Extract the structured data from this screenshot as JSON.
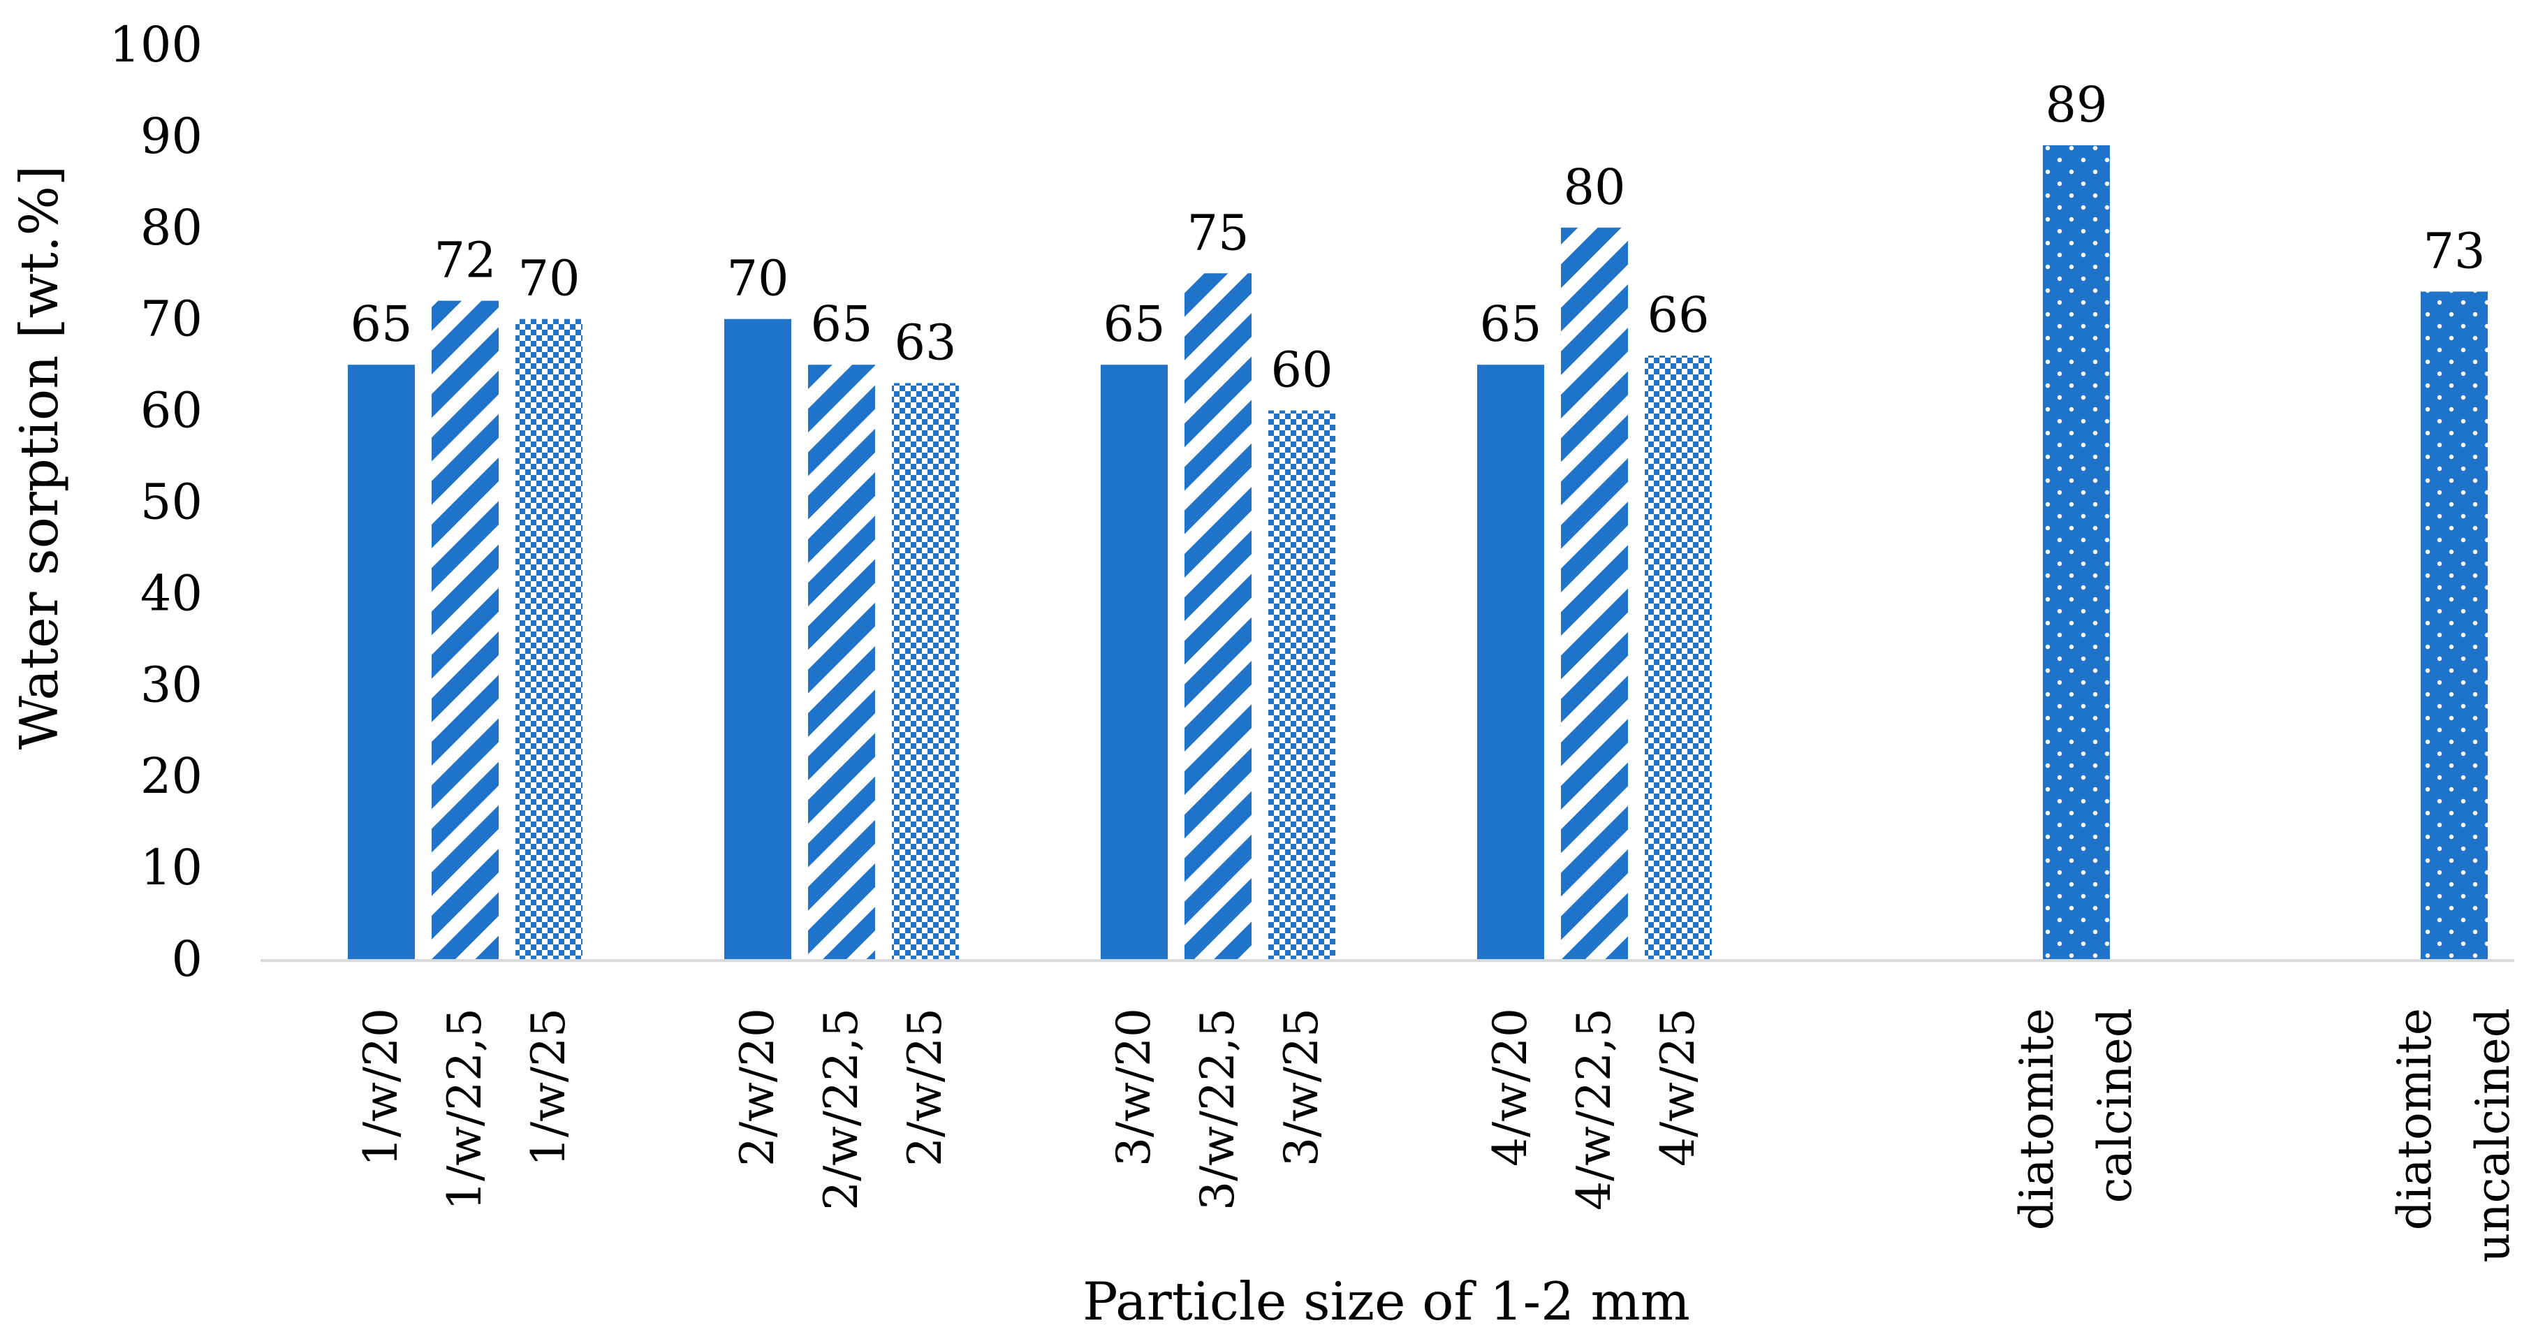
{
  "chart_data": {
    "type": "bar",
    "xlabel": "Particle size of 1-2 mm",
    "ylabel": "Water sorption [wt.%]",
    "ylim": [
      0,
      100
    ],
    "yticks": [
      0,
      10,
      20,
      30,
      40,
      50,
      60,
      70,
      80,
      90,
      100
    ],
    "grid": false,
    "legend": "none",
    "bar_color": "#1f73c9",
    "patterns": [
      "solid",
      "diagonal-stripes",
      "checker",
      "dots"
    ],
    "groups": [
      {
        "bars": [
          {
            "label": "1/w/20",
            "value": 65,
            "pattern": "solid"
          },
          {
            "label": "1/w/22,5",
            "value": 72,
            "pattern": "diagonal-stripes"
          },
          {
            "label": "1/w/25",
            "value": 70,
            "pattern": "checker"
          }
        ]
      },
      {
        "bars": [
          {
            "label": "2/w/20",
            "value": 70,
            "pattern": "solid"
          },
          {
            "label": "2/w/22,5",
            "value": 65,
            "pattern": "diagonal-stripes"
          },
          {
            "label": "2/w/25",
            "value": 63,
            "pattern": "checker"
          }
        ]
      },
      {
        "bars": [
          {
            "label": "3/w/20",
            "value": 65,
            "pattern": "solid"
          },
          {
            "label": "3/w/22,5",
            "value": 75,
            "pattern": "diagonal-stripes"
          },
          {
            "label": "3/w/25",
            "value": 60,
            "pattern": "checker"
          }
        ]
      },
      {
        "bars": [
          {
            "label": "4/w/20",
            "value": 65,
            "pattern": "solid"
          },
          {
            "label": "4/w/22,5",
            "value": 80,
            "pattern": "diagonal-stripes"
          },
          {
            "label": "4/w/25",
            "value": 66,
            "pattern": "checker"
          }
        ]
      },
      {
        "bars": [
          {
            "label_lines": [
              "diatomite",
              "calcined"
            ],
            "value": 89,
            "pattern": "dots"
          }
        ]
      },
      {
        "bars": [
          {
            "label_lines": [
              "diatomite",
              "uncalcined"
            ],
            "value": 73,
            "pattern": "dots"
          }
        ]
      }
    ]
  }
}
